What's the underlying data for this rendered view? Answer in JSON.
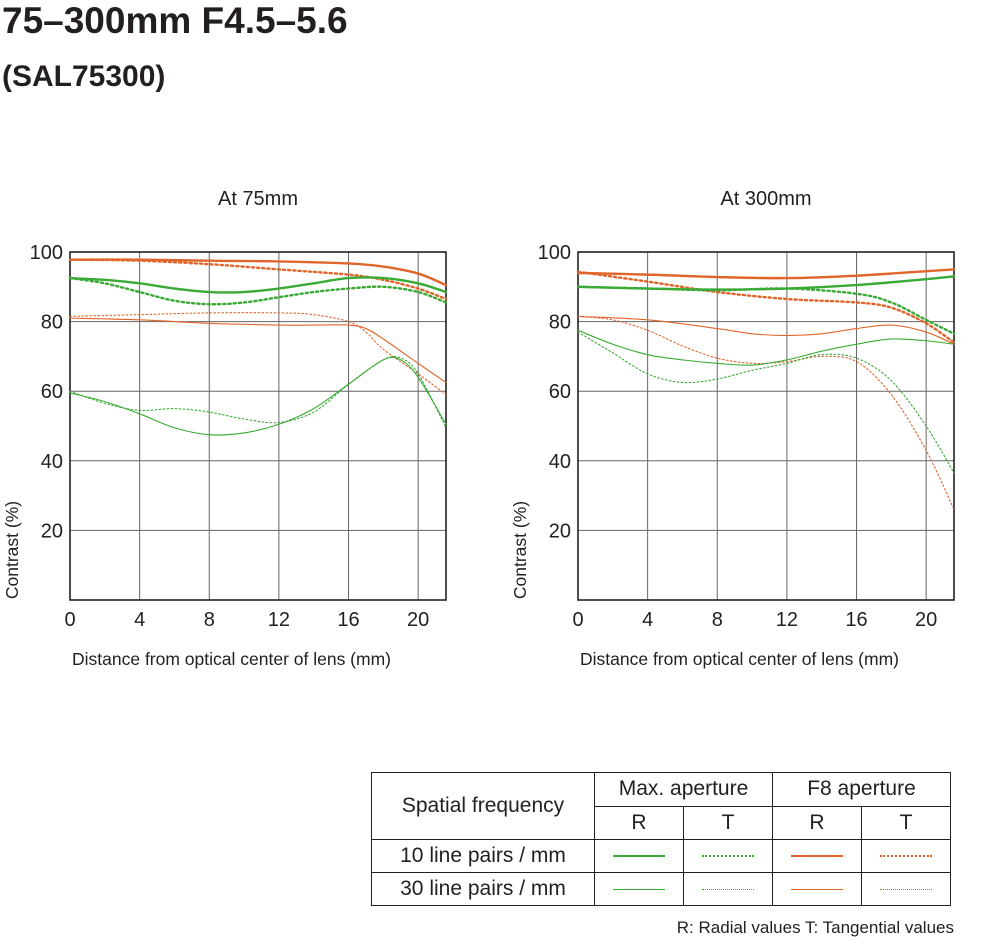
{
  "header": {
    "title": "75–300mm F4.5–5.6",
    "subtitle": "(SAL75300)"
  },
  "colors": {
    "green": "#3aaa35",
    "orange": "#e0652a",
    "grid": "#666666",
    "text": "#231f20"
  },
  "chart_data": [
    {
      "type": "line",
      "title": "At 75mm",
      "xlabel": "Distance from optical center of lens (mm)",
      "ylabel": "Contrast (%)",
      "xlim": [
        0,
        21.6
      ],
      "ylim": [
        0,
        100
      ],
      "xticks": [
        0,
        4,
        8,
        12,
        16,
        20
      ],
      "yticks": [
        20,
        40,
        60,
        80,
        100
      ],
      "grid": true,
      "series": [
        {
          "freq": "10",
          "aperture": "F8",
          "type": "R",
          "x": [
            0,
            4,
            8,
            12,
            16,
            18,
            20,
            21.6
          ],
          "y": [
            97.8,
            97.8,
            97.5,
            97.3,
            96.7,
            95.8,
            93.8,
            90.5
          ]
        },
        {
          "freq": "10",
          "aperture": "F8",
          "type": "T",
          "x": [
            0,
            4,
            8,
            12,
            16,
            18,
            20,
            21.6
          ],
          "y": [
            97.8,
            97.5,
            96.5,
            95.0,
            93.5,
            92.0,
            89.5,
            86.5
          ]
        },
        {
          "freq": "10",
          "aperture": "Max",
          "type": "R",
          "x": [
            0,
            2,
            4,
            6,
            8,
            10,
            12,
            14,
            16,
            18,
            20,
            21.6
          ],
          "y": [
            92.5,
            92.0,
            91.0,
            89.5,
            88.5,
            88.5,
            89.5,
            91.0,
            92.5,
            92.5,
            91.0,
            88.5
          ]
        },
        {
          "freq": "10",
          "aperture": "Max",
          "type": "T",
          "x": [
            0,
            2,
            4,
            6,
            8,
            10,
            12,
            14,
            16,
            18,
            20,
            21.6
          ],
          "y": [
            92.5,
            91.0,
            88.5,
            86.0,
            85.0,
            85.5,
            87.0,
            88.5,
            89.5,
            90.0,
            88.5,
            85.5
          ]
        },
        {
          "freq": "30",
          "aperture": "F8",
          "type": "R",
          "x": [
            0,
            4,
            8,
            12,
            14,
            16,
            17,
            18,
            20,
            21.6
          ],
          "y": [
            81.0,
            80.5,
            79.5,
            79.0,
            79.0,
            79.0,
            78.0,
            75.0,
            68.0,
            62.5
          ]
        },
        {
          "freq": "30",
          "aperture": "F8",
          "type": "T",
          "x": [
            0,
            4,
            8,
            12,
            14,
            16,
            17,
            18,
            20,
            21.6
          ],
          "y": [
            81.5,
            82.0,
            82.5,
            82.5,
            82.0,
            80.0,
            77.0,
            72.0,
            65.0,
            59.0
          ]
        },
        {
          "freq": "30",
          "aperture": "Max",
          "type": "R",
          "x": [
            0,
            2,
            4,
            6,
            8,
            10,
            12,
            14,
            16,
            18,
            19,
            20,
            21.6
          ],
          "y": [
            59.5,
            57.0,
            53.5,
            49.5,
            47.5,
            48.0,
            50.5,
            55.0,
            62.0,
            69.0,
            69.0,
            64.0,
            50.5
          ]
        },
        {
          "freq": "30",
          "aperture": "Max",
          "type": "T",
          "x": [
            0,
            2,
            4,
            6,
            8,
            10,
            12,
            14,
            16,
            18,
            19,
            20,
            21.6
          ],
          "y": [
            60.0,
            56.5,
            54.5,
            55.0,
            54.0,
            52.0,
            51.0,
            54.0,
            62.0,
            69.0,
            69.5,
            65.0,
            49.5
          ]
        }
      ]
    },
    {
      "type": "line",
      "title": "At 300mm",
      "xlabel": "Distance from optical center of lens (mm)",
      "ylabel": "Contrast (%)",
      "xlim": [
        0,
        21.6
      ],
      "ylim": [
        0,
        100
      ],
      "xticks": [
        0,
        4,
        8,
        12,
        16,
        20
      ],
      "yticks": [
        20,
        40,
        60,
        80,
        100
      ],
      "grid": true,
      "series": [
        {
          "freq": "10",
          "aperture": "F8",
          "type": "R",
          "x": [
            0,
            4,
            8,
            12,
            16,
            20,
            21.6
          ],
          "y": [
            94.0,
            93.5,
            92.8,
            92.5,
            93.2,
            94.5,
            95.0
          ]
        },
        {
          "freq": "10",
          "aperture": "F8",
          "type": "T",
          "x": [
            0,
            4,
            8,
            12,
            16,
            18,
            20,
            21.6
          ],
          "y": [
            94.3,
            91.5,
            88.5,
            86.5,
            85.5,
            84.0,
            79.5,
            74.0
          ]
        },
        {
          "freq": "10",
          "aperture": "Max",
          "type": "R",
          "x": [
            0,
            4,
            8,
            12,
            16,
            20,
            21.6
          ],
          "y": [
            90.0,
            89.5,
            89.2,
            89.5,
            90.5,
            92.2,
            93.0
          ]
        },
        {
          "freq": "10",
          "aperture": "Max",
          "type": "T",
          "x": [
            0,
            4,
            8,
            12,
            16,
            18,
            20,
            21.6
          ],
          "y": [
            90.0,
            89.5,
            89.0,
            89.5,
            88.0,
            85.5,
            80.5,
            76.5
          ]
        },
        {
          "freq": "30",
          "aperture": "F8",
          "type": "R",
          "x": [
            0,
            4,
            8,
            10,
            12,
            14,
            16,
            18,
            20,
            21.6
          ],
          "y": [
            81.5,
            80.5,
            78.0,
            76.5,
            76.0,
            76.5,
            78.0,
            79.0,
            77.0,
            73.5
          ]
        },
        {
          "freq": "30",
          "aperture": "F8",
          "type": "T",
          "x": [
            0,
            2,
            4,
            6,
            8,
            10,
            12,
            14,
            16,
            18,
            20,
            21.6
          ],
          "y": [
            81.5,
            80.5,
            77.5,
            73.0,
            69.5,
            68.0,
            68.5,
            70.0,
            68.5,
            59.0,
            43.0,
            26.0
          ]
        },
        {
          "freq": "30",
          "aperture": "Max",
          "type": "R",
          "x": [
            0,
            2,
            4,
            6,
            8,
            10,
            12,
            14,
            16,
            18,
            20,
            21.6
          ],
          "y": [
            77.5,
            73.5,
            70.5,
            69.0,
            68.0,
            67.5,
            69.0,
            71.5,
            73.5,
            75.0,
            74.5,
            73.5
          ]
        },
        {
          "freq": "30",
          "aperture": "Max",
          "type": "T",
          "x": [
            0,
            2,
            4,
            6,
            8,
            10,
            12,
            14,
            16,
            18,
            20,
            21.6
          ],
          "y": [
            77.0,
            71.0,
            65.0,
            62.5,
            63.5,
            66.0,
            68.0,
            70.5,
            69.5,
            63.0,
            50.0,
            36.5
          ]
        }
      ]
    }
  ],
  "legend": {
    "header": "Spatial frequency",
    "max_aperture": "Max. aperture",
    "f8_aperture": "F8 aperture",
    "r": "R",
    "t": "T",
    "row_10": "10 line pairs / mm",
    "row_30": "30 line pairs / mm",
    "note": "R: Radial values  T: Tangential values"
  }
}
